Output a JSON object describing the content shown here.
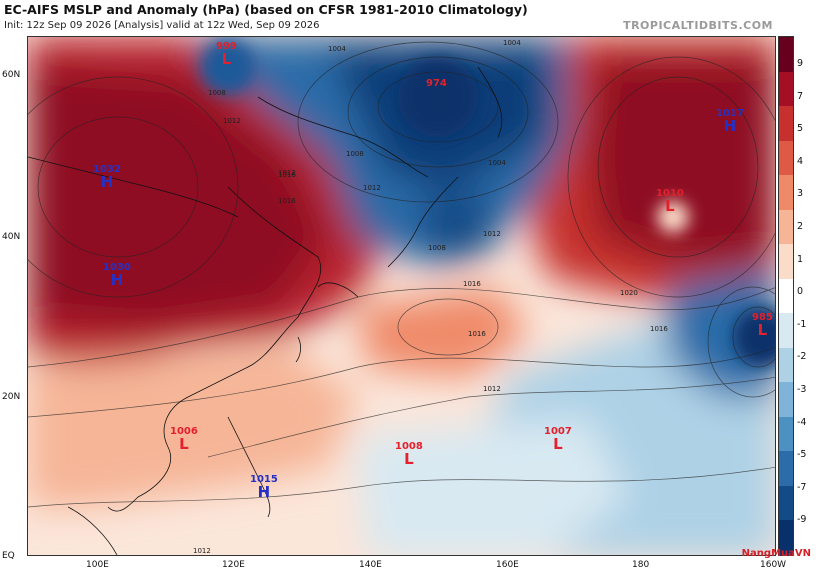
{
  "header": {
    "title": "EC-AIFS MSLP and Anomaly (hPa) (based on CFSR 1981-2010 Climatology)",
    "subtitle": "Init: 12z Sep 09 2026   [Analysis]   valid at 12z Wed, Sep 09 2026",
    "brand": "TROPICALTIDBITS.COM"
  },
  "axes": {
    "lat_labels": [
      "60N",
      "40N",
      "20N",
      "EQ"
    ],
    "lon_labels": [
      "100E",
      "120E",
      "140E",
      "160E",
      "180",
      "160W"
    ]
  },
  "colorbar": {
    "ticks": [
      "9",
      "7",
      "5",
      "4",
      "3",
      "2",
      "1",
      "0",
      "-1",
      "-2",
      "-3",
      "-4",
      "-5",
      "-7",
      "-9"
    ],
    "colors": [
      "#67001f",
      "#a50f26",
      "#c6302f",
      "#de5a46",
      "#ef8a69",
      "#f6b597",
      "#fbdcc9",
      "#ffffff",
      "#d8e9f2",
      "#aed1e6",
      "#7fb4d8",
      "#4c91c2",
      "#2c6ca8",
      "#134b87",
      "#08306b"
    ]
  },
  "centers": [
    {
      "value": "999",
      "symbol": "L",
      "color": "#e3202b"
    },
    {
      "value": "974",
      "symbol": "",
      "color": "#e3202b"
    },
    {
      "value": "1032",
      "symbol": "H",
      "color": "#2431c9"
    },
    {
      "value": "1030",
      "symbol": "H",
      "color": "#2431c9"
    },
    {
      "value": "1017",
      "symbol": "H",
      "color": "#2431c9"
    },
    {
      "value": "1010",
      "symbol": "L",
      "color": "#e3202b"
    },
    {
      "value": "985",
      "symbol": "L",
      "color": "#e3202b"
    },
    {
      "value": "1006",
      "symbol": "L",
      "color": "#e3202b"
    },
    {
      "value": "1008",
      "symbol": "L",
      "color": "#e3202b"
    },
    {
      "value": "1007",
      "symbol": "L",
      "color": "#e3202b"
    },
    {
      "value": "1015",
      "symbol": "H",
      "color": "#2431c9"
    }
  ],
  "isobar_labels": [
    "1004",
    "1004",
    "1008",
    "1012",
    "1012",
    "1016",
    "1016",
    "1016",
    "1020",
    "1012",
    "1008",
    "1012",
    "1016",
    "1004",
    "1008",
    "1012",
    "1016",
    "1012"
  ],
  "logo": "NangMuaVN"
}
